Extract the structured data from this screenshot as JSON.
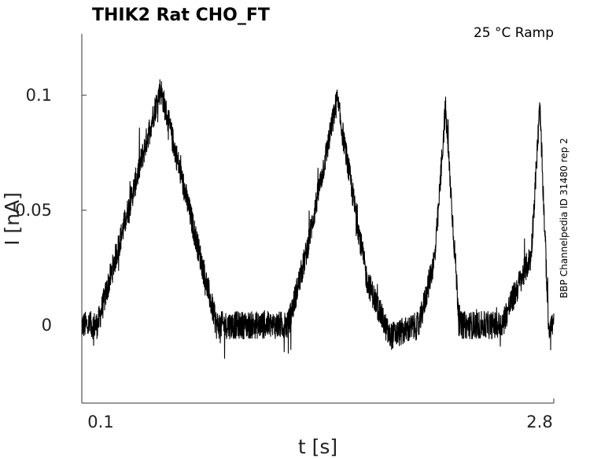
{
  "chart_data": {
    "type": "line",
    "title": "THIK2  Rat  CHO_FT",
    "condition": "25 °C  Ramp",
    "side_label": "BBP Channelpedia ID 31480 rep 2",
    "xlabel": "t [s]",
    "ylabel": "I [nA]",
    "xlim": [
      0.1,
      2.8
    ],
    "ylim": [
      -0.03,
      0.125
    ],
    "x_ticks": [
      {
        "value": 0.1,
        "label": "0.1"
      },
      {
        "value": 2.8,
        "label": "2.8"
      }
    ],
    "y_ticks": [
      {
        "value": 0,
        "label": "0"
      },
      {
        "value": 0.05,
        "label": "0.05"
      },
      {
        "value": 0.1,
        "label": "0.1"
      }
    ],
    "grid": false,
    "line_color": "#000000",
    "noise_amplitude": 0.006,
    "series": [
      {
        "x": [
          0.1,
          0.19,
          0.55,
          0.87,
          1.28,
          1.38,
          1.56,
          1.73,
          1.86,
          2.03,
          2.12,
          2.14,
          2.18,
          2.26,
          2.37,
          2.5,
          2.67,
          2.72,
          2.77,
          2.8
        ],
        "values": [
          0,
          0,
          0.103,
          0,
          0,
          0.03,
          0.098,
          0.02,
          -0.005,
          0,
          0.03,
          0.05,
          0.095,
          0,
          0,
          0,
          0.03,
          0.095,
          0,
          0
        ]
      }
    ]
  }
}
